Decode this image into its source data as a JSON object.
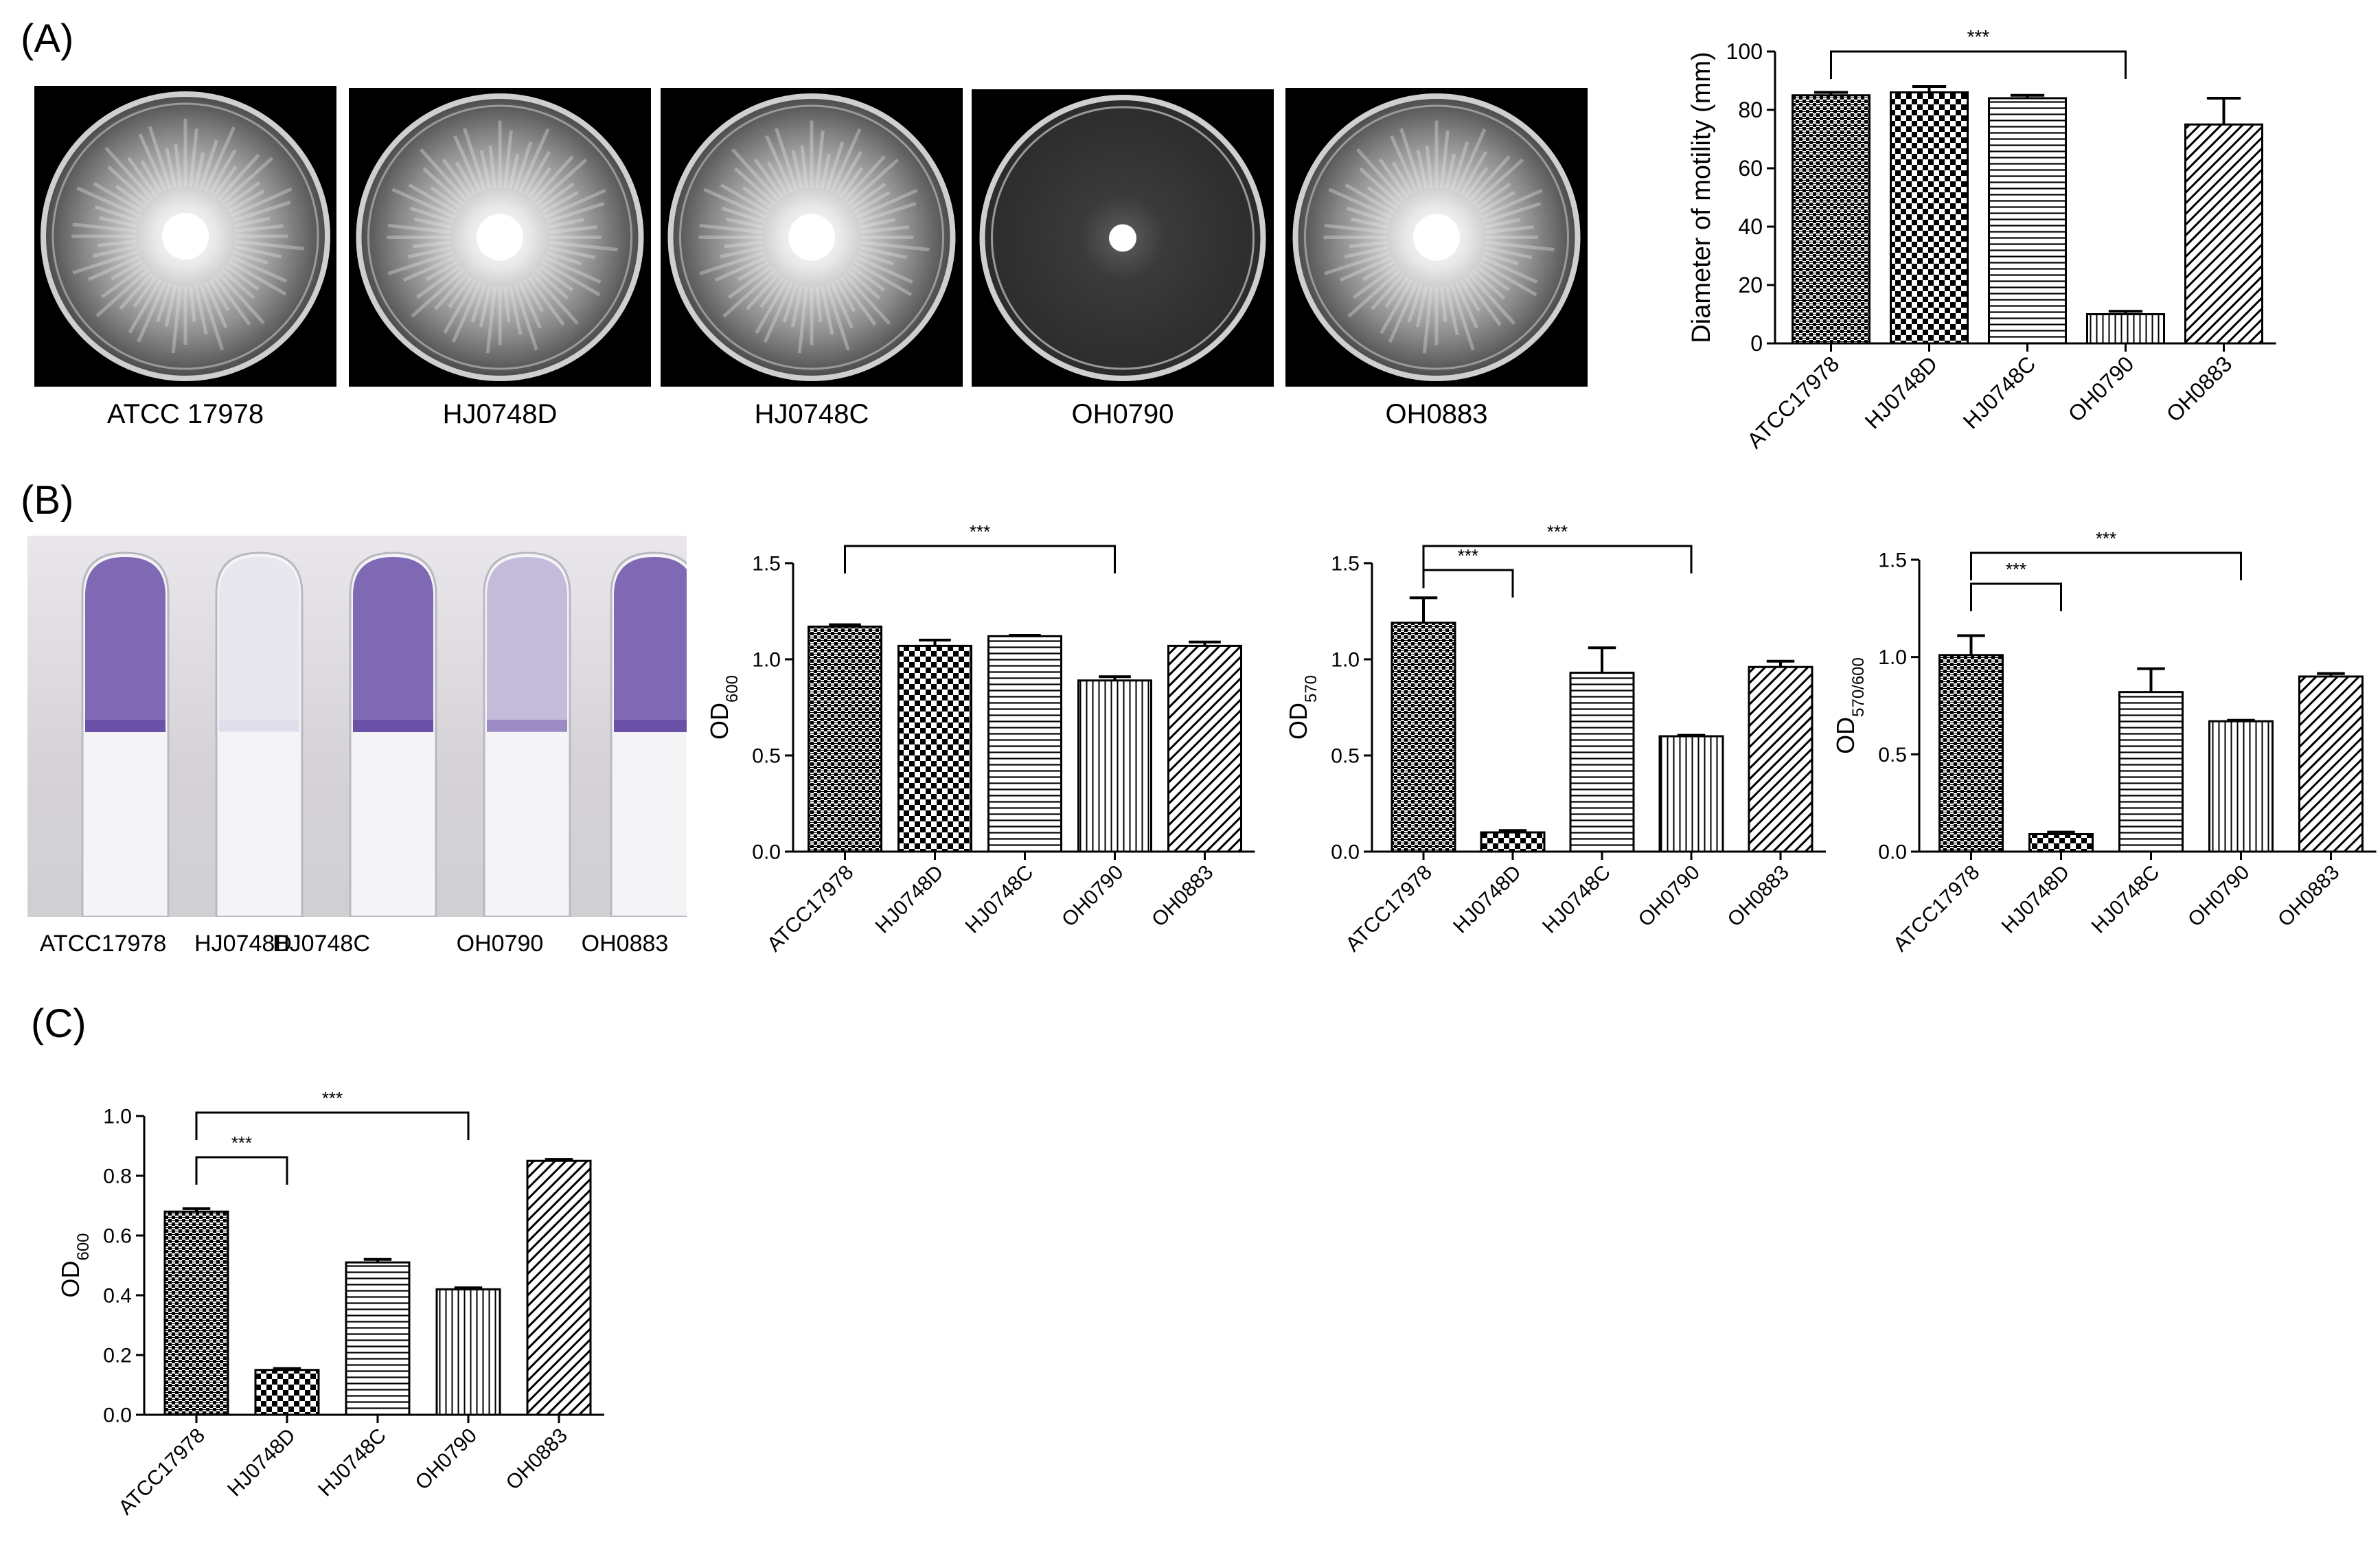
{
  "panels": {
    "a": "(A)",
    "b": "(B)",
    "c": "(C)"
  },
  "plates": [
    {
      "label": "ATCC 17978",
      "zone": "large-swarm"
    },
    {
      "label": "HJ0748D",
      "zone": "large-swarm"
    },
    {
      "label": "HJ0748C",
      "zone": "large-swarm"
    },
    {
      "label": "OH0790",
      "zone": "small-colony"
    },
    {
      "label": "OH0883",
      "zone": "large-swarm"
    }
  ],
  "tubes": [
    {
      "label": "ATCC17978",
      "stain": "strong"
    },
    {
      "label": "HJ0748D",
      "stain": "none"
    },
    {
      "label": "HJ0748C",
      "stain": "strong"
    },
    {
      "label": "OH0790",
      "stain": "weak"
    },
    {
      "label": "OH0883",
      "stain": "strong"
    }
  ],
  "colors": {
    "tube_stain": "#6a4fa8",
    "bar_stroke": "#000000",
    "background": "#ffffff"
  },
  "chart_data": [
    {
      "id": "motility",
      "type": "bar",
      "categories": [
        "ATCC17978",
        "HJ0748D",
        "HJ0748C",
        "OH0790",
        "OH0883"
      ],
      "values": [
        85,
        86,
        84,
        10,
        75
      ],
      "errors": [
        1,
        2,
        1,
        1,
        9
      ],
      "ylabel": "Diameter of motility (mm)",
      "ylabel_sub": "",
      "ylabel_tail": "",
      "ylim": [
        0,
        100
      ],
      "yticks": [
        "0",
        "20",
        "40",
        "60",
        "80",
        "100"
      ],
      "patterns": [
        "checker-fine",
        "checker",
        "hlines",
        "vlines",
        "diag"
      ],
      "significance": [
        {
          "from": 0,
          "to": 3,
          "label": "***"
        }
      ]
    },
    {
      "id": "od600-growth",
      "type": "bar",
      "categories": [
        "ATCC17978",
        "HJ0748D",
        "HJ0748C",
        "OH0790",
        "OH0883"
      ],
      "values": [
        1.17,
        1.07,
        1.12,
        0.89,
        1.07
      ],
      "errors": [
        0.01,
        0.03,
        0.005,
        0.02,
        0.02
      ],
      "ylabel": "OD",
      "ylabel_sub": "600",
      "ylabel_tail": "",
      "ylim": [
        0,
        1.5
      ],
      "yticks": [
        "0.0",
        "0.5",
        "1.0",
        "1.5"
      ],
      "patterns": [
        "checker-fine",
        "checker",
        "hlines",
        "vlines",
        "diag"
      ],
      "significance": [
        {
          "from": 0,
          "to": 3,
          "label": "***"
        }
      ]
    },
    {
      "id": "od570-biofilm",
      "type": "bar",
      "categories": [
        "ATCC17978",
        "HJ0748D",
        "HJ0748C",
        "OH0790",
        "OH0883"
      ],
      "values": [
        1.19,
        0.1,
        0.93,
        0.6,
        0.96
      ],
      "errors": [
        0.13,
        0.01,
        0.13,
        0.005,
        0.03
      ],
      "ylabel": "OD",
      "ylabel_sub": "570",
      "ylabel_tail": "",
      "ylim": [
        0,
        1.5
      ],
      "yticks": [
        "0.0",
        "0.5",
        "1.0",
        "1.5"
      ],
      "patterns": [
        "checker-fine",
        "checker",
        "hlines",
        "vlines",
        "diag"
      ],
      "significance": [
        {
          "from": 0,
          "to": 1,
          "label": "***"
        },
        {
          "from": 0,
          "to": 3,
          "label": "***"
        }
      ]
    },
    {
      "id": "od570-600-ratio",
      "type": "bar",
      "categories": [
        "ATCC17978",
        "HJ0748D",
        "HJ0748C",
        "OH0790",
        "OH0883"
      ],
      "values": [
        1.01,
        0.09,
        0.82,
        0.67,
        0.9
      ],
      "errors": [
        0.1,
        0.01,
        0.12,
        0.005,
        0.015
      ],
      "ylabel": "OD",
      "ylabel_sub": "570/600",
      "ylabel_tail": "",
      "ylim": [
        0,
        1.5
      ],
      "yticks": [
        "0.0",
        "0.5",
        "1.0",
        "1.5"
      ],
      "patterns": [
        "checker-fine",
        "checker",
        "hlines",
        "vlines",
        "diag"
      ],
      "significance": [
        {
          "from": 0,
          "to": 1,
          "label": "***"
        },
        {
          "from": 0,
          "to": 3,
          "label": "***"
        }
      ]
    },
    {
      "id": "od600-panel-c",
      "type": "bar",
      "categories": [
        "ATCC17978",
        "HJ0748D",
        "HJ0748C",
        "OH0790",
        "OH0883"
      ],
      "values": [
        0.68,
        0.15,
        0.51,
        0.42,
        0.85
      ],
      "errors": [
        0.01,
        0.005,
        0.01,
        0.005,
        0.005
      ],
      "ylabel": "OD",
      "ylabel_sub": "600",
      "ylabel_tail": "",
      "ylim": [
        0,
        1.0
      ],
      "yticks": [
        "0.0",
        "0.2",
        "0.4",
        "0.6",
        "0.8",
        "1.0"
      ],
      "patterns": [
        "checker-fine",
        "checker",
        "hlines",
        "vlines",
        "diag"
      ],
      "significance": [
        {
          "from": 0,
          "to": 1,
          "label": "***"
        },
        {
          "from": 0,
          "to": 3,
          "label": "***"
        }
      ]
    }
  ]
}
